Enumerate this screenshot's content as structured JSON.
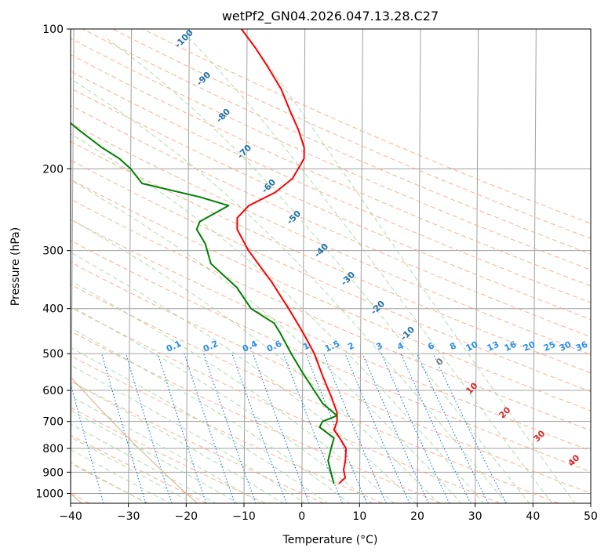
{
  "chart_data": {
    "type": "line",
    "title": "wetPf2_GN04.2026.047.13.28.C27",
    "xlabel": "Temperature (°C)",
    "ylabel": "Pressure (hPa)",
    "xlim": [
      -40,
      50
    ],
    "ylim": [
      1050,
      100
    ],
    "x_ticks": [
      -40,
      -30,
      -20,
      -10,
      0,
      10,
      20,
      30,
      40,
      50
    ],
    "y_ticks": [
      100,
      200,
      300,
      400,
      500,
      600,
      700,
      800,
      900,
      1000
    ],
    "series": [
      {
        "name": "Temperature",
        "color": "#ff0000",
        "points": [
          {
            "p": 950,
            "t": 6.5
          },
          {
            "p": 925,
            "t": 7.5
          },
          {
            "p": 890,
            "t": 7.2
          },
          {
            "p": 850,
            "t": 7.5
          },
          {
            "p": 800,
            "t": 7.6
          },
          {
            "p": 760,
            "t": 6.5
          },
          {
            "p": 730,
            "t": 5.5
          },
          {
            "p": 700,
            "t": 6.0
          },
          {
            "p": 670,
            "t": 6.0
          },
          {
            "p": 620,
            "t": 5.0
          },
          {
            "p": 560,
            "t": 3.5
          },
          {
            "p": 500,
            "t": 2.0
          },
          {
            "p": 450,
            "t": 0.0
          },
          {
            "p": 400,
            "t": -2.5
          },
          {
            "p": 350,
            "t": -5.5
          },
          {
            "p": 300,
            "t": -9.5
          },
          {
            "p": 270,
            "t": -11.5
          },
          {
            "p": 255,
            "t": -11.5
          },
          {
            "p": 240,
            "t": -9.5
          },
          {
            "p": 225,
            "t": -5.0
          },
          {
            "p": 210,
            "t": -2.0
          },
          {
            "p": 200,
            "t": -1.0
          },
          {
            "p": 190,
            "t": 0.0
          },
          {
            "p": 180,
            "t": 0.0
          },
          {
            "p": 165,
            "t": -1.0
          },
          {
            "p": 150,
            "t": -2.5
          },
          {
            "p": 135,
            "t": -4.0
          },
          {
            "p": 120,
            "t": -6.5
          },
          {
            "p": 110,
            "t": -8.5
          },
          {
            "p": 100,
            "t": -11.0
          }
        ]
      },
      {
        "name": "Dewpoint",
        "color": "#008000",
        "points": [
          {
            "p": 950,
            "t": 5.5
          },
          {
            "p": 900,
            "t": 5.0
          },
          {
            "p": 850,
            "t": 4.5
          },
          {
            "p": 800,
            "t": 5.0
          },
          {
            "p": 760,
            "t": 5.5
          },
          {
            "p": 720,
            "t": 3.0
          },
          {
            "p": 700,
            "t": 3.5
          },
          {
            "p": 680,
            "t": 6.0
          },
          {
            "p": 640,
            "t": 3.5
          },
          {
            "p": 600,
            "t": 2.0
          },
          {
            "p": 550,
            "t": 0.0
          },
          {
            "p": 500,
            "t": -2.0
          },
          {
            "p": 450,
            "t": -4.0
          },
          {
            "p": 430,
            "t": -5.0
          },
          {
            "p": 400,
            "t": -9.0
          },
          {
            "p": 360,
            "t": -11.5
          },
          {
            "p": 320,
            "t": -16.0
          },
          {
            "p": 290,
            "t": -17.0
          },
          {
            "p": 270,
            "t": -18.5
          },
          {
            "p": 260,
            "t": -18.0
          },
          {
            "p": 240,
            "t": -13.0
          },
          {
            "p": 230,
            "t": -18.0
          },
          {
            "p": 215,
            "t": -28.0
          },
          {
            "p": 200,
            "t": -30.0
          },
          {
            "p": 190,
            "t": -32.0
          },
          {
            "p": 180,
            "t": -35.0
          },
          {
            "p": 165,
            "t": -39.0
          },
          {
            "p": 150,
            "t": -43.0
          },
          {
            "p": 130,
            "t": -50.0
          },
          {
            "p": 115,
            "t": -55.0
          },
          {
            "p": 100,
            "t": -61.0
          }
        ]
      }
    ],
    "dry_adiabat_labels": [
      "-100",
      "-90",
      "-80",
      "-70",
      "-60",
      "-50",
      "-40",
      "-30",
      "-20",
      "-10"
    ],
    "moist_adiabat_labels": [
      "0",
      "10",
      "20",
      "30",
      "40"
    ],
    "mixing_ratio_labels": [
      "0.1",
      "0.2",
      "0.4",
      "0.6",
      "1",
      "1.5",
      "2",
      "3",
      "4",
      "6",
      "8",
      "10",
      "13",
      "16",
      "20",
      "25",
      "30",
      "36"
    ],
    "mixing_ratio_values": [
      0.1,
      0.2,
      0.4,
      0.6,
      1,
      1.5,
      2,
      3,
      4,
      6,
      8,
      10,
      13,
      16,
      20,
      25,
      30,
      36
    ],
    "dry_adiabat_label_thetas": [
      -100,
      -90,
      -80,
      -70,
      -60,
      -50,
      -40,
      -30,
      -20,
      -10
    ],
    "moist_adiabat_label_temps": [
      0,
      10,
      20,
      30,
      40
    ],
    "colors": {
      "isotherm": "#a0a0a0",
      "isobar": "#a0a0a0",
      "dry_adiabat": "#f4a582",
      "moist_adiabat": "#a6d7a6",
      "mixing_ratio": "#1f77d4",
      "dry_label": "#1f6fa8",
      "moist_label_zero": "#777777",
      "moist_label": "#d62728",
      "mix_label": "#2b8fe8",
      "tan_curve": "#d2b48c"
    }
  }
}
